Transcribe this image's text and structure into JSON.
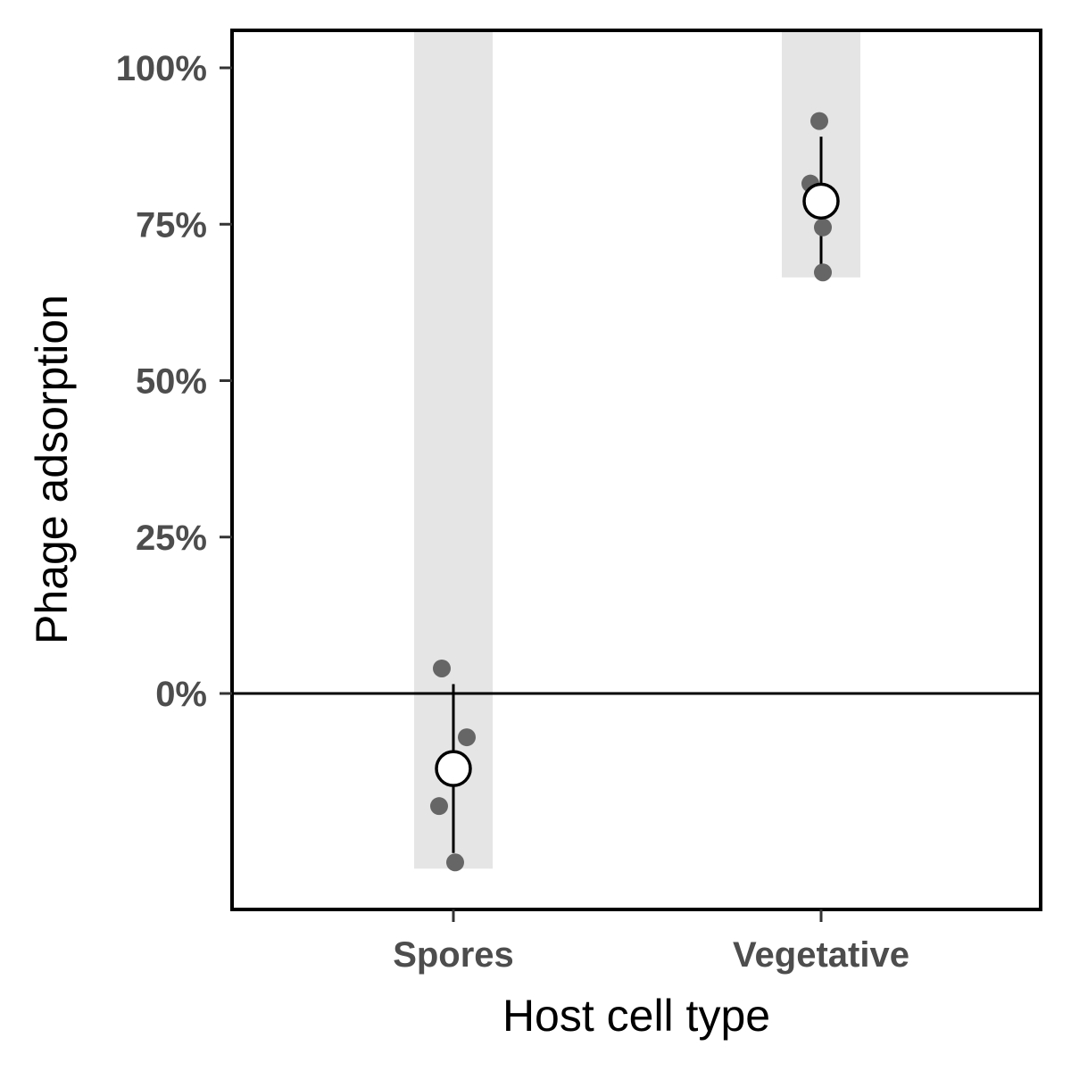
{
  "chart_data": {
    "type": "scatter",
    "xlabel": "Host cell type",
    "ylabel": "Phage adsorption",
    "categories": [
      "Spores",
      "Vegetative"
    ],
    "y_ticks": [
      {
        "value": 0,
        "label": "0%"
      },
      {
        "value": 25,
        "label": "25%"
      },
      {
        "value": 50,
        "label": "50%"
      },
      {
        "value": 75,
        "label": "75%"
      },
      {
        "value": 100,
        "label": "100%"
      }
    ],
    "ylim": [
      -34,
      106
    ],
    "reference_line_y": 0,
    "groups": [
      {
        "category": "Spores",
        "points": [
          4,
          -7,
          -18,
          -27
        ],
        "mean": -12,
        "error_low": -25.5,
        "error_high": 1.5,
        "range_band": [
          -28,
          106
        ]
      },
      {
        "category": "Vegetative",
        "points": [
          91.5,
          81.5,
          74.5,
          67.3
        ],
        "mean": 78.7,
        "error_low": 68.5,
        "error_high": 89,
        "range_band": [
          66.5,
          106
        ]
      }
    ],
    "grid": false,
    "colors": {
      "band": "#e5e5e5",
      "point": "#666666",
      "mean_fill": "#ffffff",
      "line": "#000000",
      "tick_text": "#4d4d4d"
    }
  }
}
